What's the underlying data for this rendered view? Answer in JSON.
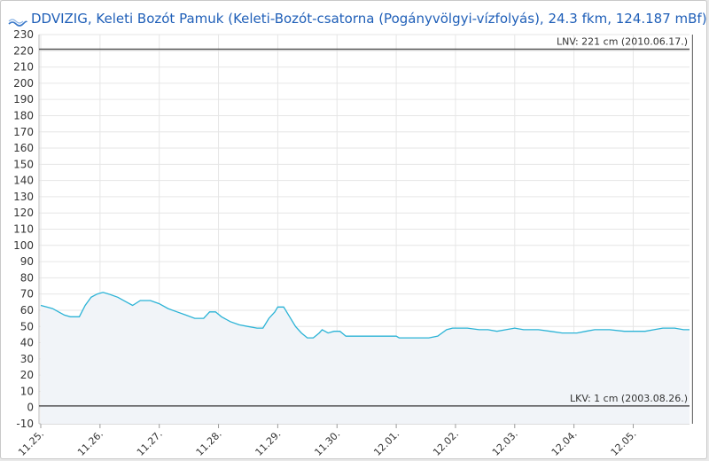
{
  "header": {
    "title": "DDVIZIG, Keleti Bozót Pamuk (Keleti-Bozót-csatorna (Pogányvölgyi-vízfolyás), 24.3 fkm, 124.187 mBf)",
    "logo_text": "VIZIG"
  },
  "colors": {
    "series": "#2bb3d6",
    "area": "#f1f4f8",
    "threshold": "#555555",
    "grid": "#e6e6e6",
    "title": "#1f5fb8"
  },
  "chart_data": {
    "type": "area",
    "title": "DDVIZIG, Keleti Bozót Pamuk (Keleti-Bozót-csatorna (Pogányvölgyi-vízfolyás), 24.3 fkm, 124.187 mBf)",
    "xlabel": "",
    "ylabel": "",
    "ylim": [
      -10,
      230
    ],
    "y_ticks": [
      -10,
      0,
      10,
      20,
      30,
      40,
      50,
      60,
      70,
      80,
      90,
      100,
      110,
      120,
      130,
      140,
      150,
      160,
      170,
      180,
      190,
      200,
      210,
      220,
      230
    ],
    "x_ticks": [
      "11.25.",
      "11.26.",
      "11.27.",
      "11.28.",
      "11.29.",
      "11.30.",
      "12.01.",
      "12.02.",
      "12.03.",
      "12.04.",
      "12.05."
    ],
    "x_unit": "day",
    "grid": true,
    "series": [
      {
        "values": [
          [
            0.0,
            63
          ],
          [
            0.1,
            62
          ],
          [
            0.2,
            61
          ],
          [
            0.3,
            59
          ],
          [
            0.4,
            57
          ],
          [
            0.5,
            56
          ],
          [
            0.65,
            56
          ],
          [
            0.75,
            63
          ],
          [
            0.85,
            68
          ],
          [
            0.95,
            70
          ],
          [
            1.05,
            71
          ],
          [
            1.15,
            70
          ],
          [
            1.3,
            68
          ],
          [
            1.45,
            65
          ],
          [
            1.55,
            63
          ],
          [
            1.68,
            66
          ],
          [
            1.85,
            66
          ],
          [
            2.0,
            64
          ],
          [
            2.15,
            61
          ],
          [
            2.3,
            59
          ],
          [
            2.45,
            57
          ],
          [
            2.6,
            55
          ],
          [
            2.75,
            55
          ],
          [
            2.85,
            59
          ],
          [
            2.95,
            59
          ],
          [
            3.05,
            56
          ],
          [
            3.2,
            53
          ],
          [
            3.35,
            51
          ],
          [
            3.5,
            50
          ],
          [
            3.65,
            49
          ],
          [
            3.75,
            49
          ],
          [
            3.85,
            55
          ],
          [
            3.95,
            59
          ],
          [
            4.0,
            62
          ],
          [
            4.1,
            62
          ],
          [
            4.2,
            56
          ],
          [
            4.3,
            50
          ],
          [
            4.4,
            46
          ],
          [
            4.5,
            43
          ],
          [
            4.6,
            43
          ],
          [
            4.7,
            46
          ],
          [
            4.75,
            48
          ],
          [
            4.85,
            46
          ],
          [
            4.95,
            47
          ],
          [
            5.05,
            47
          ],
          [
            5.15,
            44
          ],
          [
            5.3,
            44
          ],
          [
            5.5,
            44
          ],
          [
            5.8,
            44
          ],
          [
            6.0,
            44
          ],
          [
            6.05,
            43
          ],
          [
            6.3,
            43
          ],
          [
            6.55,
            43
          ],
          [
            6.7,
            44
          ],
          [
            6.85,
            48
          ],
          [
            6.95,
            49
          ],
          [
            7.2,
            49
          ],
          [
            7.4,
            48
          ],
          [
            7.55,
            48
          ],
          [
            7.7,
            47
          ],
          [
            7.85,
            48
          ],
          [
            8.0,
            49
          ],
          [
            8.15,
            48
          ],
          [
            8.4,
            48
          ],
          [
            8.6,
            47
          ],
          [
            8.8,
            46
          ],
          [
            9.05,
            46
          ],
          [
            9.2,
            47
          ],
          [
            9.35,
            48
          ],
          [
            9.6,
            48
          ],
          [
            9.85,
            47
          ],
          [
            10.2,
            47
          ],
          [
            10.35,
            48
          ],
          [
            10.5,
            49
          ],
          [
            10.7,
            49
          ],
          [
            10.85,
            48
          ],
          [
            10.95,
            48
          ]
        ]
      }
    ],
    "annotations": [
      {
        "label": "LNV: 221 cm (2010.06.17.)",
        "y": 221,
        "position": "top-right"
      },
      {
        "label": "LKV: 1 cm (2003.08.26.)",
        "y": 1,
        "position": "top-right"
      }
    ],
    "vertical_line_x": 11.0,
    "legend": "none"
  }
}
